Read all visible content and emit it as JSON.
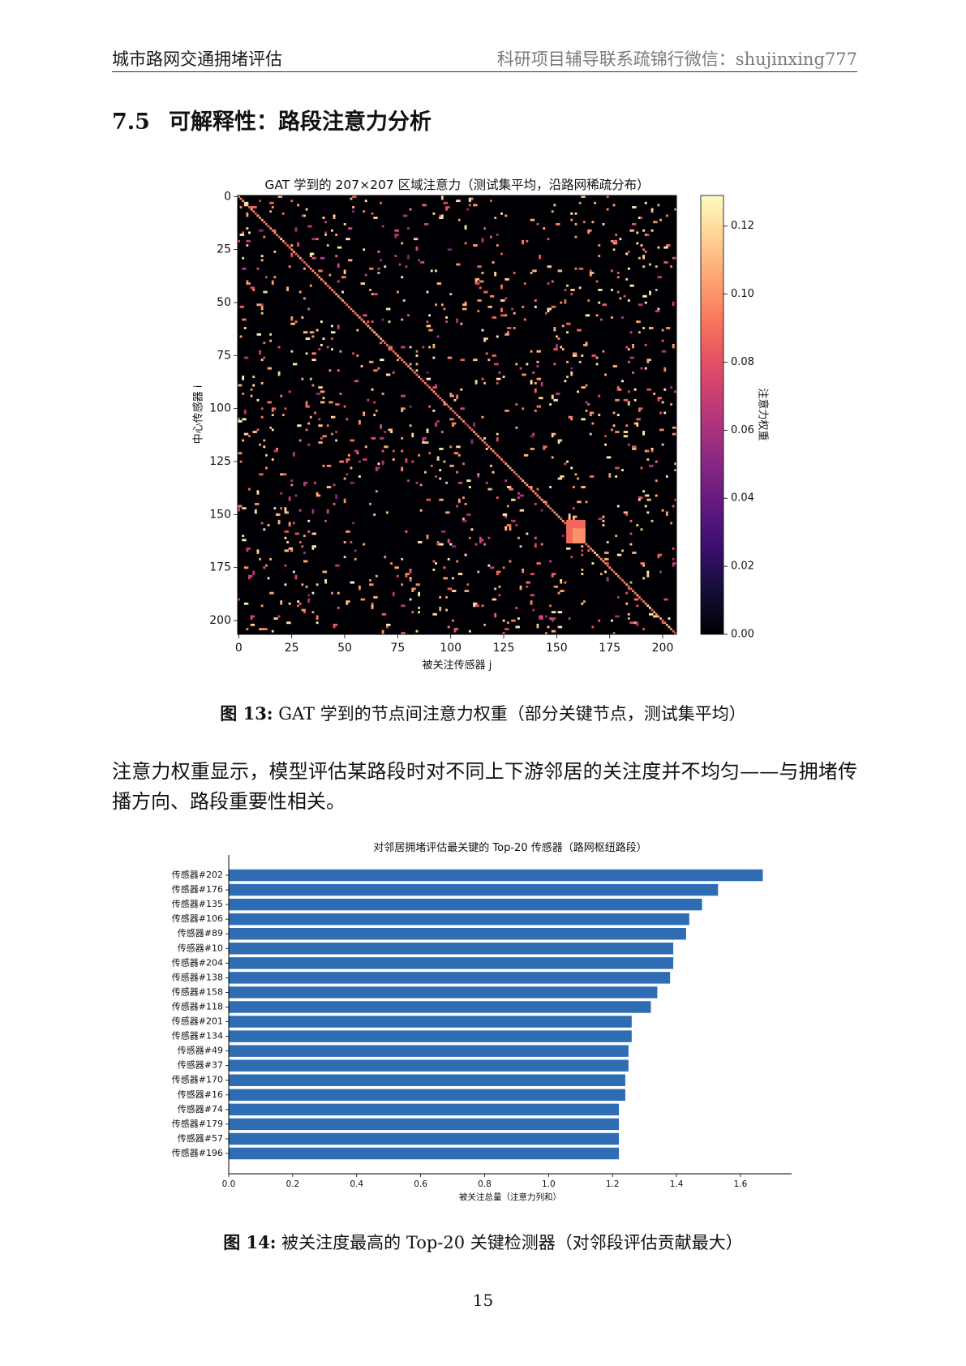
{
  "header": {
    "left": "城市路网交通拥堵评估",
    "right": "科研项目辅导联系疏锦行微信：shujinxing777"
  },
  "section": {
    "number": "7.5",
    "title": "可解释性：路段注意力分析"
  },
  "figure13": {
    "label": "图 13:",
    "caption": "GAT 学到的节点间注意力权重（部分关键节点，测试集平均）"
  },
  "paragraph": [
    "注意力权重显示，模型评估某路段时对不同上下游邻居的关注度并不均匀——与拥堵传",
    "播方向、路段重要性相关。"
  ],
  "figure14": {
    "label": "图 14:",
    "caption": "被关注度最高的 Top-20 关键检测器（对邻段评估贡献最大）"
  },
  "page_number": "15",
  "chart_data": [
    {
      "type": "heatmap",
      "title": "GAT 学到的 207×207 区域注意力（测试集平均，沿路网稀疏分布）",
      "xlabel": "被关注传感器 j",
      "ylabel": "中心传感器 i",
      "rows": 207,
      "cols": 207,
      "xticks": [
        0,
        25,
        50,
        75,
        100,
        125,
        150,
        175,
        200
      ],
      "yticks": [
        0,
        25,
        50,
        75,
        100,
        125,
        150,
        175,
        200
      ],
      "colorbar": {
        "label": "注意力权重",
        "colormap": "magma",
        "range": [
          0,
          0.129
        ],
        "ticks": [
          0,
          0.02,
          0.04,
          0.06,
          0.08,
          0.1,
          0.12
        ],
        "tick_labels": [
          "0.00",
          "0.02",
          "0.04",
          "0.06",
          "0.08",
          "0.10",
          "0.12"
        ]
      },
      "diagonal_value": 0.095,
      "blocks": [
        {
          "rows": [
            153,
            163
          ],
          "cols": [
            155,
            163
          ],
          "value": 0.088
        },
        {
          "rows": [
            157,
            163
          ],
          "cols": [
            158,
            163
          ],
          "value": 0.1
        }
      ],
      "cells": [
        {
          "i": 3,
          "j": 3,
          "v": 0.12
        },
        {
          "i": 3,
          "j": 4,
          "v": 0.12
        },
        {
          "i": 4,
          "j": 3,
          "v": 0.12
        },
        {
          "i": 4,
          "j": 4,
          "v": 0.115
        },
        {
          "i": 20,
          "j": 20,
          "v": 0.12
        },
        {
          "i": 29,
          "j": 29,
          "v": 0.11
        },
        {
          "i": 64,
          "j": 64,
          "v": 0.11
        },
        {
          "i": 71,
          "j": 71,
          "v": 0.09
        },
        {
          "i": 71,
          "j": 72,
          "v": 0.09
        },
        {
          "i": 72,
          "j": 71,
          "v": 0.09
        },
        {
          "i": 72,
          "j": 72,
          "v": 0.09
        },
        {
          "i": 81,
          "j": 81,
          "v": 0.105
        },
        {
          "i": 97,
          "j": 97,
          "v": 0.11
        },
        {
          "i": 107,
          "j": 107,
          "v": 0.07
        },
        {
          "i": 108,
          "j": 108,
          "v": 0.07
        },
        {
          "i": 134,
          "j": 134,
          "v": 0.11
        },
        {
          "i": 144,
          "j": 144,
          "v": 0.11
        },
        {
          "i": 168,
          "j": 168,
          "v": 0.115
        },
        {
          "i": 169,
          "j": 169,
          "v": 0.115
        },
        {
          "i": 193,
          "j": 193,
          "v": 0.12
        },
        {
          "i": 194,
          "j": 194,
          "v": 0.12
        },
        {
          "i": 203,
          "j": 203,
          "v": 0.11
        },
        {
          "i": 3,
          "j": 192,
          "v": 0.125
        },
        {
          "i": 16,
          "j": 195,
          "v": 0.12
        },
        {
          "i": 192,
          "j": 3,
          "v": 0.125
        },
        {
          "i": 192,
          "j": 4,
          "v": 0.12
        }
      ]
    },
    {
      "type": "bar",
      "orientation": "horizontal",
      "title": "对邻居拥堵评估最关键的 Top-20 传感器（路网枢纽路段）",
      "xlabel": "被关注总量（注意力列和）",
      "categories": [
        "传感器#202",
        "传感器#176",
        "传感器#135",
        "传感器#106",
        "传感器#89",
        "传感器#10",
        "传感器#204",
        "传感器#138",
        "传感器#158",
        "传感器#118",
        "传感器#201",
        "传感器#134",
        "传感器#49",
        "传感器#37",
        "传感器#170",
        "传感器#16",
        "传感器#74",
        "传感器#179",
        "传感器#57",
        "传感器#196"
      ],
      "values": [
        1.67,
        1.53,
        1.48,
        1.44,
        1.43,
        1.39,
        1.39,
        1.38,
        1.34,
        1.32,
        1.26,
        1.26,
        1.25,
        1.25,
        1.24,
        1.24,
        1.22,
        1.22,
        1.22,
        1.22
      ],
      "xlim": [
        0,
        1.76
      ],
      "xticks": [
        0.0,
        0.2,
        0.4,
        0.6,
        0.8,
        1.0,
        1.2,
        1.4,
        1.6
      ],
      "xtick_labels": [
        "0.0",
        "0.2",
        "0.4",
        "0.6",
        "0.8",
        "1.0",
        "1.2",
        "1.4",
        "1.6"
      ],
      "color": "#2e6db4",
      "grid": false
    }
  ]
}
